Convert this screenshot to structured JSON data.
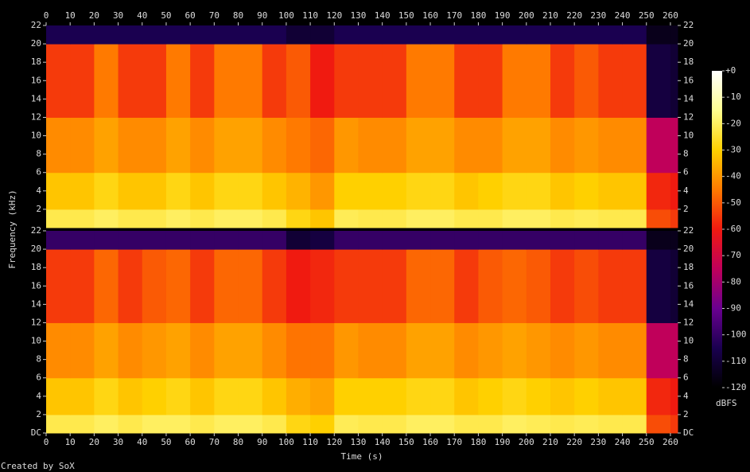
{
  "chart_data": {
    "type": "spectrogram",
    "x_label": "Time (s)",
    "y_label": "Frequency (kHz)",
    "colorbar_label": "dBFS",
    "footer": "Created by SoX",
    "xlim": [
      0,
      263
    ],
    "xticks": [
      0,
      10,
      20,
      30,
      40,
      50,
      60,
      70,
      80,
      90,
      100,
      110,
      120,
      130,
      140,
      150,
      160,
      170,
      180,
      190,
      200,
      210,
      220,
      230,
      240,
      250,
      260
    ],
    "clim": [
      -120,
      0
    ],
    "cticks": [
      {
        "value": 0,
        "label": "+0"
      },
      -10,
      -20,
      -30,
      -40,
      -50,
      -60,
      -70,
      -80,
      -90,
      -100,
      -110,
      -120
    ],
    "colormap": [
      "#000000",
      "#1a0050",
      "#6a0090",
      "#c0005a",
      "#f01a10",
      "#ff7a00",
      "#ffd000",
      "#ffff90",
      "#ffffff"
    ],
    "time_bins": [
      0,
      10,
      20,
      30,
      40,
      50,
      60,
      70,
      80,
      90,
      100,
      110,
      120,
      130,
      140,
      150,
      160,
      170,
      180,
      190,
      200,
      210,
      220,
      230,
      240,
      250,
      260,
      263
    ],
    "freq_bands": [
      0,
      2,
      6,
      12,
      20,
      22
    ],
    "channels": [
      {
        "ylim": [
          0,
          22
        ],
        "yticks": [
          2,
          4,
          6,
          8,
          10,
          12,
          14,
          16,
          18,
          20,
          22
        ],
        "values": [
          [
            -22,
            -22,
            -20,
            -22,
            -22,
            -20,
            -22,
            -20,
            -20,
            -22,
            -28,
            -32,
            -21,
            -22,
            -22,
            -20,
            -20,
            -22,
            -22,
            -20,
            -20,
            -22,
            -21,
            -22,
            -22,
            -52,
            -55
          ],
          [
            -32,
            -32,
            -28,
            -32,
            -32,
            -28,
            -32,
            -28,
            -28,
            -32,
            -35,
            -40,
            -30,
            -30,
            -30,
            -28,
            -28,
            -32,
            -30,
            -28,
            -28,
            -32,
            -30,
            -32,
            -32,
            -58,
            -60
          ],
          [
            -42,
            -42,
            -38,
            -42,
            -42,
            -38,
            -42,
            -38,
            -38,
            -42,
            -45,
            -48,
            -40,
            -42,
            -42,
            -38,
            -38,
            -42,
            -42,
            -38,
            -38,
            -42,
            -40,
            -42,
            -42,
            -75,
            -75
          ],
          [
            -55,
            -55,
            -45,
            -55,
            -55,
            -45,
            -55,
            -45,
            -45,
            -55,
            -50,
            -60,
            -55,
            -55,
            -55,
            -45,
            -45,
            -55,
            -55,
            -45,
            -45,
            -55,
            -50,
            -55,
            -55,
            -108,
            -110
          ],
          [
            -105,
            -105,
            -105,
            -105,
            -105,
            -105,
            -105,
            -105,
            -105,
            -105,
            -110,
            -110,
            -105,
            -105,
            -105,
            -105,
            -105,
            -105,
            -105,
            -105,
            -105,
            -105,
            -105,
            -105,
            -105,
            -115,
            -115
          ]
        ]
      },
      {
        "ylim": [
          0,
          22
        ],
        "yticks": [
          {
            "value": 0,
            "label": "DC"
          },
          2,
          4,
          6,
          8,
          10,
          12,
          14,
          16,
          18,
          20,
          22
        ],
        "values": [
          [
            -22,
            -22,
            -20,
            -22,
            -20,
            -20,
            -22,
            -20,
            -20,
            -22,
            -28,
            -30,
            -21,
            -22,
            -22,
            -20,
            -20,
            -22,
            -22,
            -20,
            -21,
            -22,
            -21,
            -22,
            -22,
            -52,
            -55
          ],
          [
            -32,
            -32,
            -28,
            -32,
            -30,
            -28,
            -32,
            -28,
            -28,
            -32,
            -36,
            -38,
            -30,
            -30,
            -30,
            -28,
            -28,
            -32,
            -30,
            -28,
            -30,
            -32,
            -30,
            -32,
            -32,
            -58,
            -60
          ],
          [
            -42,
            -42,
            -38,
            -42,
            -40,
            -38,
            -42,
            -38,
            -38,
            -42,
            -46,
            -46,
            -40,
            -42,
            -42,
            -38,
            -38,
            -42,
            -40,
            -38,
            -40,
            -42,
            -40,
            -42,
            -42,
            -75,
            -75
          ],
          [
            -55,
            -55,
            -48,
            -55,
            -50,
            -48,
            -55,
            -48,
            -48,
            -55,
            -60,
            -58,
            -55,
            -55,
            -55,
            -48,
            -48,
            -55,
            -50,
            -48,
            -50,
            -55,
            -52,
            -55,
            -55,
            -108,
            -110
          ],
          [
            -100,
            -100,
            -100,
            -100,
            -100,
            -100,
            -100,
            -100,
            -100,
            -100,
            -110,
            -108,
            -100,
            -100,
            -100,
            -100,
            -100,
            -100,
            -100,
            -100,
            -100,
            -100,
            -100,
            -100,
            -100,
            -115,
            -115
          ]
        ]
      }
    ]
  }
}
